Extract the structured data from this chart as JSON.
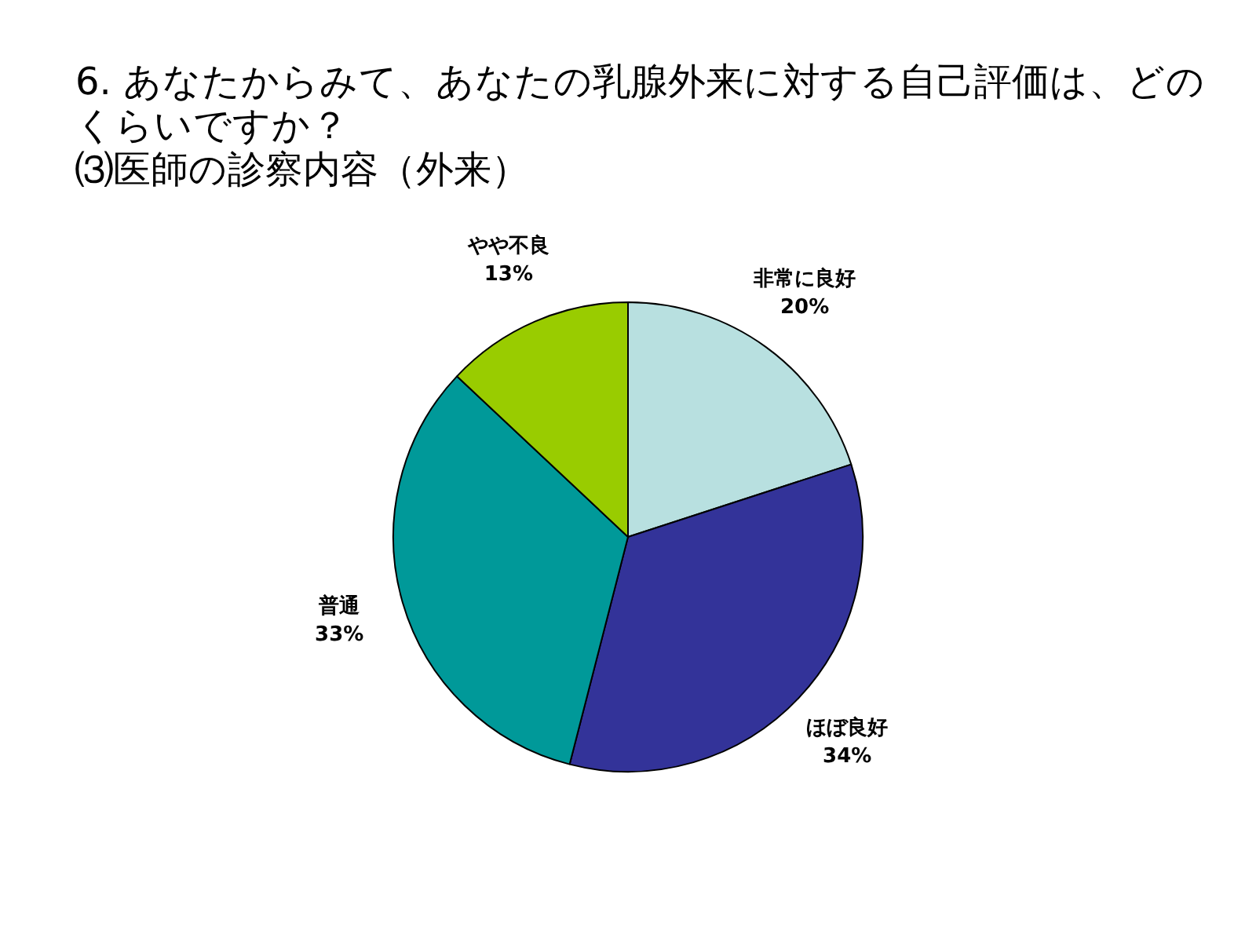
{
  "chart_data": {
    "type": "pie",
    "title": "6. あなたからみて、あなたの乳腺外来に対する自己評価は、どのくらいですか？",
    "subtitle": "⑶医師の診察内容（外来）",
    "categories": [
      "非常に良好",
      "ほぼ良好",
      "普通",
      "やや不良"
    ],
    "values": [
      20,
      34,
      33,
      13
    ],
    "value_labels": [
      "20%",
      "34%",
      "33%",
      "13%"
    ],
    "colors": [
      "#b8e0e0",
      "#333399",
      "#009999",
      "#99cc00"
    ],
    "legend": false
  }
}
